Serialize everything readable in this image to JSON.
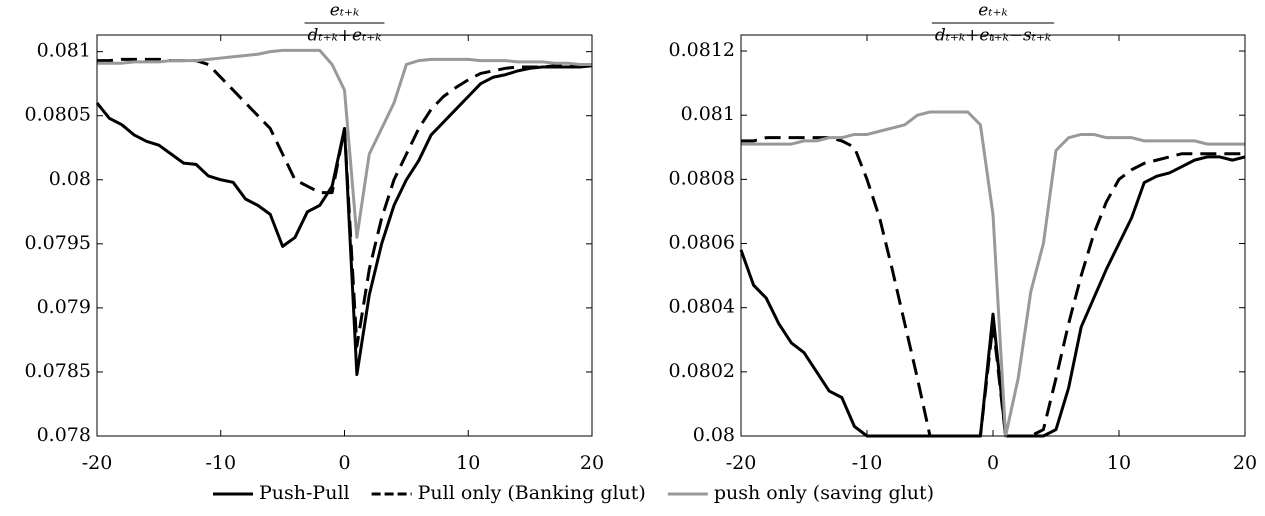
{
  "chart_data": [
    {
      "type": "line",
      "title": {
        "numerator": "eₜ₊ₖ",
        "denominator": "dₜ₊ₖ+eₜ₊ₖ"
      },
      "x": [
        -20,
        -19,
        -18,
        -17,
        -16,
        -15,
        -14,
        -13,
        -12,
        -11,
        -10,
        -9,
        -8,
        -7,
        -6,
        -5,
        -4,
        -3,
        -2,
        -1,
        0,
        1,
        2,
        3,
        4,
        5,
        6,
        7,
        8,
        9,
        10,
        11,
        12,
        13,
        14,
        15,
        16,
        17,
        18,
        19,
        20
      ],
      "xlim": [
        -20,
        20
      ],
      "xticks": [
        -20,
        -10,
        0,
        10,
        20
      ],
      "ylim": [
        0.078,
        0.08113
      ],
      "yticks": [
        0.078,
        0.0785,
        0.079,
        0.0795,
        0.08,
        0.0805,
        0.081
      ],
      "series": [
        {
          "name": "Push-Pull",
          "color": "#000000",
          "dash": "solid",
          "values": [
            0.0806,
            0.08048,
            0.08043,
            0.08035,
            0.0803,
            0.08027,
            0.0802,
            0.08013,
            0.08012,
            0.08003,
            0.08,
            0.07998,
            0.07985,
            0.0798,
            0.07973,
            0.07948,
            0.07955,
            0.07975,
            0.0798,
            0.07995,
            0.0804,
            0.07848,
            0.0791,
            0.0795,
            0.0798,
            0.08,
            0.08015,
            0.08035,
            0.08045,
            0.08055,
            0.08065,
            0.08075,
            0.0808,
            0.08082,
            0.08085,
            0.08087,
            0.08088,
            0.08088,
            0.08088,
            0.08088,
            0.08089
          ]
        },
        {
          "name": "Pull only (Banking glut)",
          "color": "#000000",
          "dash": "dashed",
          "values": [
            0.08093,
            0.08093,
            0.08094,
            0.08094,
            0.08094,
            0.08094,
            0.08093,
            0.08093,
            0.08093,
            0.0809,
            0.0808,
            0.0807,
            0.0806,
            0.0805,
            0.0804,
            0.0802,
            0.08,
            0.07995,
            0.0799,
            0.0799,
            0.0804,
            0.0787,
            0.0793,
            0.0797,
            0.08,
            0.0802,
            0.0804,
            0.08055,
            0.08065,
            0.08072,
            0.08078,
            0.08083,
            0.08085,
            0.08087,
            0.08088,
            0.08088,
            0.08088,
            0.08089,
            0.08089,
            0.08089,
            0.08089
          ]
        },
        {
          "name": "push only (saving glut)",
          "color": "#999999",
          "dash": "solid",
          "values": [
            0.08091,
            0.08091,
            0.08091,
            0.08092,
            0.08092,
            0.08092,
            0.08093,
            0.08093,
            0.08093,
            0.08094,
            0.08095,
            0.08096,
            0.08097,
            0.08098,
            0.081,
            0.08101,
            0.08101,
            0.08101,
            0.08101,
            0.0809,
            0.0807,
            0.07955,
            0.0802,
            0.0804,
            0.0806,
            0.0809,
            0.08093,
            0.08094,
            0.08094,
            0.08094,
            0.08094,
            0.08093,
            0.08093,
            0.08093,
            0.08092,
            0.08092,
            0.08092,
            0.08091,
            0.08091,
            0.0809,
            0.0809
          ]
        }
      ]
    },
    {
      "type": "line",
      "title": {
        "numerator": "eₜ₊ₖ",
        "denominator": "dₜ₊ₖ+eₜ₊ₖ−sₜ₊ₖ"
      },
      "x": [
        -20,
        -19,
        -18,
        -17,
        -16,
        -15,
        -14,
        -13,
        -12,
        -11,
        -10,
        -9,
        -8,
        -7,
        -6,
        -5,
        -4,
        -3,
        -2,
        -1,
        0,
        1,
        2,
        3,
        4,
        5,
        6,
        7,
        8,
        9,
        10,
        11,
        12,
        13,
        14,
        15,
        16,
        17,
        18,
        19,
        20
      ],
      "xlim": [
        -20,
        20
      ],
      "xticks": [
        -20,
        -10,
        0,
        10,
        20
      ],
      "ylim": [
        0.08,
        0.08125
      ],
      "yticks": [
        0.08,
        0.0802,
        0.0804,
        0.0806,
        0.0808,
        0.081,
        0.0812
      ],
      "series": [
        {
          "color": "#000000",
          "dash": "solid",
          "values": [
            0.08058,
            0.08047,
            0.08043,
            0.08035,
            0.08029,
            0.08026,
            0.0802,
            0.08014,
            0.08012,
            0.08003,
            0.08,
            0.08,
            0.08,
            0.08,
            0.08,
            0.08,
            0.08,
            0.08,
            0.08,
            0.08,
            0.08038,
            0.08,
            0.08,
            0.08,
            0.08,
            0.08002,
            0.08015,
            0.08034,
            0.08043,
            0.08052,
            0.0806,
            0.08068,
            0.08079,
            0.08081,
            0.08082,
            0.08084,
            0.08086,
            0.08087,
            0.08087,
            0.08086,
            0.08087
          ]
        },
        {
          "color": "#000000",
          "dash": "dashed",
          "values": [
            0.08092,
            0.08092,
            0.08093,
            0.08093,
            0.08093,
            0.08093,
            0.08093,
            0.08093,
            0.08092,
            0.0809,
            0.0808,
            0.08068,
            0.08052,
            0.08035,
            0.08018,
            0.08,
            0.08,
            0.08,
            0.08,
            0.08,
            0.08035,
            0.08,
            0.08,
            0.08,
            0.08002,
            0.08018,
            0.08035,
            0.0805,
            0.08063,
            0.08073,
            0.0808,
            0.08083,
            0.08085,
            0.08086,
            0.08087,
            0.08088,
            0.08088,
            0.08088,
            0.08088,
            0.08088,
            0.08088
          ]
        },
        {
          "color": "#999999",
          "dash": "solid",
          "values": [
            0.08091,
            0.08091,
            0.08091,
            0.08091,
            0.08091,
            0.08092,
            0.08092,
            0.08093,
            0.08093,
            0.08094,
            0.08094,
            0.08095,
            0.08096,
            0.08097,
            0.081,
            0.08101,
            0.08101,
            0.08101,
            0.08101,
            0.08097,
            0.08069,
            0.08,
            0.08018,
            0.08045,
            0.0806,
            0.08089,
            0.08093,
            0.08094,
            0.08094,
            0.08093,
            0.08093,
            0.08093,
            0.08092,
            0.08092,
            0.08092,
            0.08092,
            0.08092,
            0.08091,
            0.08091,
            0.08091,
            0.08091
          ]
        }
      ]
    }
  ]
}
